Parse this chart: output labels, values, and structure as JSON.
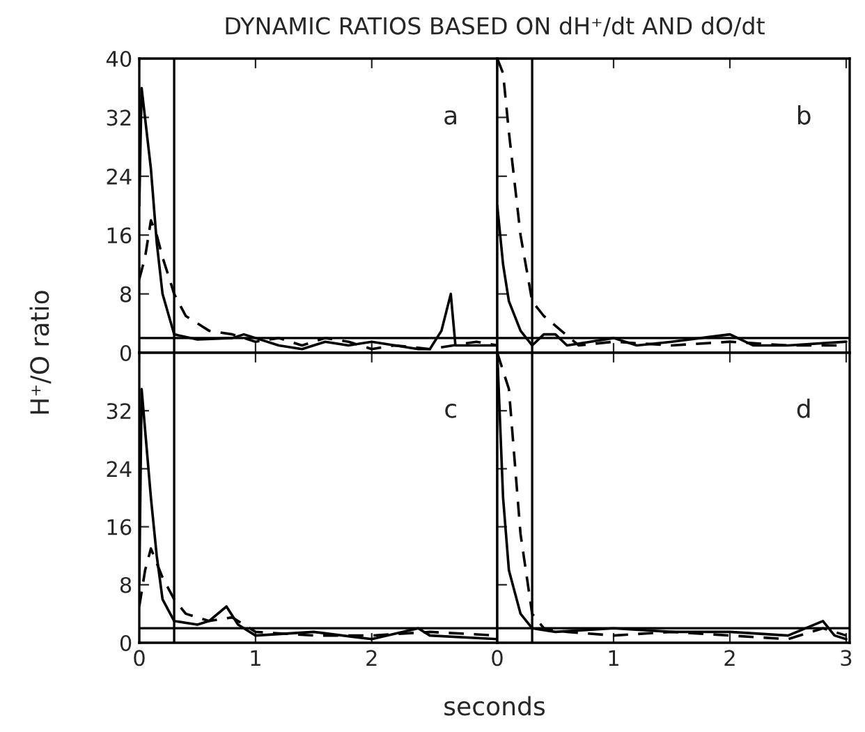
{
  "chart_data": [
    {
      "type": "line",
      "title": "DYNAMIC RATIOS BASED ON dH⁺/dt AND dO/dt",
      "ylabel": "H⁺/O ratio",
      "annotations": [
        "a"
      ],
      "xlim": [
        0,
        3.08
      ],
      "ylim": [
        0,
        40
      ],
      "xticks": [
        0,
        1,
        2
      ],
      "yticks": [
        0,
        8,
        16,
        24,
        32,
        40
      ],
      "tick_labels": "y",
      "ref_lines": [
        {
          "axis": "x",
          "value": 0.3
        },
        {
          "axis": "y",
          "value": 2
        }
      ],
      "series": [
        {
          "color": "#000000",
          "line_style": "solid",
          "x": [
            0,
            0.02,
            0.1,
            0.15,
            0.2,
            0.3,
            0.5,
            0.8,
            0.9,
            1.0,
            1.2,
            1.4,
            1.6,
            1.8,
            2.0,
            2.2,
            2.4,
            2.5,
            2.6,
            2.68,
            2.72,
            2.9,
            3.08
          ],
          "values": [
            20,
            36,
            25,
            15,
            8,
            2.5,
            1.8,
            2,
            2.5,
            2,
            1,
            0.5,
            1.5,
            1,
            1.5,
            1,
            0.5,
            0.5,
            3,
            8,
            1,
            1,
            1
          ]
        },
        {
          "color": "#000000",
          "line_style": "dashed",
          "x": [
            0,
            0.05,
            0.1,
            0.15,
            0.2,
            0.3,
            0.4,
            0.6,
            0.8,
            1.0,
            1.2,
            1.4,
            1.6,
            1.8,
            2.0,
            2.2,
            2.5,
            2.7,
            2.9,
            3.08
          ],
          "values": [
            10,
            13,
            18,
            16,
            13,
            8,
            5,
            3,
            2.5,
            1.5,
            2,
            1,
            2,
            1.5,
            0.5,
            1,
            0.5,
            1,
            1.5,
            1
          ]
        }
      ]
    },
    {
      "type": "line",
      "annotations": [
        "b"
      ],
      "xlim": [
        0,
        3.03
      ],
      "ylim": [
        0,
        40
      ],
      "xticks": [
        0,
        1,
        2,
        3
      ],
      "yticks": [
        0,
        8,
        16,
        24,
        32,
        40
      ],
      "tick_labels": false,
      "ref_lines": [
        {
          "axis": "x",
          "value": 0.3
        },
        {
          "axis": "y",
          "value": 2
        }
      ],
      "series": [
        {
          "color": "#000000",
          "line_style": "solid",
          "x": [
            0,
            0.05,
            0.1,
            0.2,
            0.3,
            0.4,
            0.5,
            0.6,
            0.8,
            1.0,
            1.2,
            1.5,
            2.0,
            2.2,
            2.5,
            3.0
          ],
          "values": [
            20,
            12,
            7,
            3,
            1,
            2.5,
            2.5,
            1,
            1.5,
            2,
            1,
            1.5,
            2.5,
            1,
            1,
            1.5
          ]
        },
        {
          "color": "#000000",
          "line_style": "dashed",
          "x": [
            0,
            0.05,
            0.1,
            0.2,
            0.3,
            0.4,
            0.55,
            0.7,
            1.0,
            1.5,
            2.0,
            2.5,
            3.0
          ],
          "values": [
            40,
            38,
            30,
            16,
            7,
            5,
            3,
            1,
            1.5,
            1,
            1.5,
            1,
            1
          ]
        }
      ]
    },
    {
      "type": "line",
      "annotations": [
        "c"
      ],
      "xlim": [
        0,
        3.08
      ],
      "ylim": [
        0,
        40
      ],
      "xticks": [
        0,
        1,
        2
      ],
      "yticks": [
        0,
        8,
        16,
        24,
        32
      ],
      "ref_lines": [
        {
          "axis": "x",
          "value": 0.3
        },
        {
          "axis": "y",
          "value": 2
        }
      ],
      "series": [
        {
          "color": "#000000",
          "line_style": "solid",
          "x": [
            0,
            0.02,
            0.1,
            0.15,
            0.2,
            0.3,
            0.5,
            0.6,
            0.75,
            0.85,
            1.0,
            1.5,
            2.0,
            2.4,
            2.5,
            3.08
          ],
          "values": [
            8,
            35,
            20,
            12,
            6,
            3,
            2.5,
            3,
            5,
            2.5,
            1,
            1.5,
            0.5,
            2,
            1,
            0.5
          ]
        },
        {
          "color": "#000000",
          "line_style": "dashed",
          "x": [
            0,
            0.05,
            0.1,
            0.2,
            0.3,
            0.4,
            0.6,
            0.8,
            1.0,
            1.5,
            2.0,
            2.5,
            3.08
          ],
          "values": [
            5,
            10,
            13,
            9,
            6,
            4,
            3,
            3.5,
            1.5,
            1,
            1,
            1.5,
            1
          ]
        }
      ]
    },
    {
      "type": "line",
      "xlabel": "seconds",
      "annotations": [
        "d"
      ],
      "xlim": [
        0,
        3.03
      ],
      "ylim": [
        0,
        40
      ],
      "xticks": [
        0,
        1,
        2,
        3
      ],
      "yticks": [
        0,
        8,
        16,
        24,
        32,
        40
      ],
      "tick_labels": "x",
      "ref_lines": [
        {
          "axis": "x",
          "value": 0.3
        },
        {
          "axis": "y",
          "value": 2
        }
      ],
      "series": [
        {
          "color": "#000000",
          "line_style": "solid",
          "x": [
            0,
            0.05,
            0.1,
            0.2,
            0.3,
            0.5,
            1.0,
            1.5,
            2.0,
            2.5,
            2.8,
            2.9,
            3.0
          ],
          "values": [
            40,
            20,
            10,
            4,
            2,
            1.5,
            2,
            1.5,
            1.5,
            1,
            3,
            1,
            0.5
          ]
        },
        {
          "color": "#000000",
          "line_style": "dashed",
          "x": [
            0,
            0.1,
            0.2,
            0.3,
            0.4,
            0.6,
            1.0,
            1.5,
            2.0,
            2.5,
            2.8,
            3.0
          ],
          "values": [
            40,
            35,
            15,
            4,
            2,
            1.5,
            1,
            1.5,
            1,
            0.5,
            2,
            1
          ]
        }
      ]
    }
  ]
}
